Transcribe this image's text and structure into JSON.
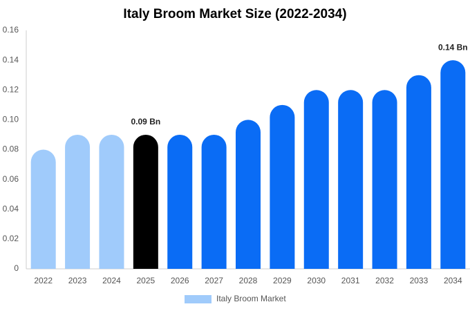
{
  "chart_data": {
    "type": "bar",
    "title": "Italy Broom Market Size (2022-2034)",
    "categories": [
      "2022",
      "2023",
      "2024",
      "2025",
      "2026",
      "2027",
      "2028",
      "2029",
      "2030",
      "2031",
      "2032",
      "2033",
      "2034"
    ],
    "series": [
      {
        "name": "Italy Broom Market",
        "color": "#a0cbfb",
        "values": [
          0.08,
          0.09,
          0.09,
          0.09,
          0.09,
          0.09,
          0.1,
          0.11,
          0.12,
          0.12,
          0.12,
          0.13,
          0.14
        ],
        "value_labels": [
          null,
          null,
          null,
          "0.09 Bn",
          null,
          null,
          null,
          null,
          null,
          null,
          null,
          null,
          "0.14 Bn"
        ],
        "bar_colors": [
          "#a0cbfb",
          "#a0cbfb",
          "#a0cbfb",
          "#000000",
          "#0a6cf5",
          "#0a6cf5",
          "#0a6cf5",
          "#0a6cf5",
          "#0a6cf5",
          "#0a6cf5",
          "#0a6cf5",
          "#0a6cf5",
          "#0a6cf5"
        ]
      }
    ],
    "ylim": [
      0,
      0.16
    ],
    "yticks": [
      0,
      0.02,
      0.04,
      0.06,
      0.08,
      {
        "value": 0.1,
        "label": "0.10"
      },
      0.12,
      0.14,
      0.16
    ],
    "grid": false,
    "legend": "bottom"
  }
}
